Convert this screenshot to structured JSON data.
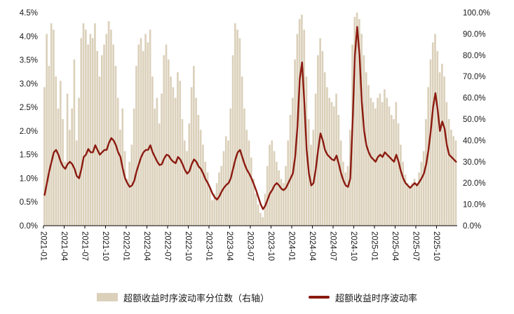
{
  "chart_data": {
    "type": "area+line",
    "title": "",
    "left_axis": {
      "min": 0,
      "max": 4.5,
      "ticks": [
        "4.5%",
        "4.0%",
        "3.5%",
        "3.0%",
        "2.5%",
        "2.0%",
        "1.5%",
        "1.0%",
        "0.5%",
        "0.0%"
      ]
    },
    "right_axis": {
      "min": 0,
      "max": 100,
      "ticks": [
        "100.0%",
        "90.0%",
        "80.0%",
        "70.0%",
        "60.0%",
        "50.0%",
        "40.0%",
        "30.0%",
        "20.0%",
        "10.0%",
        "0.0%"
      ]
    },
    "x_ticks": [
      "2021-01",
      "2021-04",
      "2021-07",
      "2021-10",
      "2022-01",
      "2022-04",
      "2022-07",
      "2022-10",
      "2023-01",
      "2023-04",
      "2023-07",
      "2023-10",
      "2024-01",
      "2024-04",
      "2024-07",
      "2024-10",
      "2025-01",
      "2025-04",
      "2025-07",
      "2025-10"
    ],
    "months_per_tick": 3,
    "months_span": 60,
    "grid": "off",
    "legend_position": "bottom",
    "series": [
      {
        "name": "超额收益时序波动率分位数（右轴）",
        "axis": "right",
        "type": "area",
        "color": "#DBD0BA",
        "values": [
          65,
          90,
          75,
          95,
          92,
          70,
          55,
          68,
          50,
          30,
          62,
          45,
          55,
          78,
          40,
          60,
          88,
          95,
          92,
          85,
          90,
          88,
          95,
          82,
          70,
          80,
          85,
          90,
          96,
          92,
          85,
          75,
          60,
          45,
          55,
          35,
          22,
          30,
          38,
          55,
          75,
          85,
          88,
          82,
          90,
          86,
          92,
          70,
          55,
          60,
          48,
          62,
          80,
          85,
          78,
          70,
          65,
          60,
          72,
          68,
          50,
          40,
          35,
          48,
          65,
          75,
          60,
          52,
          45,
          38,
          30,
          25,
          18,
          12,
          15,
          20,
          25,
          28,
          35,
          42,
          40,
          55,
          80,
          95,
          92,
          88,
          70,
          55,
          45,
          40,
          32,
          22,
          15,
          10,
          6,
          4,
          15,
          28,
          38,
          40,
          35,
          30,
          26,
          22,
          20,
          28,
          40,
          52,
          60,
          78,
          90,
          97,
          99,
          92,
          70,
          50,
          38,
          45,
          62,
          80,
          88,
          82,
          72,
          65,
          60,
          58,
          56,
          62,
          52,
          40,
          30,
          25,
          28,
          45,
          85,
          98,
          100,
          97,
          90,
          80,
          72,
          66,
          60,
          58,
          55,
          60,
          62,
          58,
          64,
          60,
          56,
          52,
          50,
          58,
          48,
          38,
          30,
          24,
          20,
          18,
          20,
          22,
          20,
          25,
          30,
          35,
          50,
          65,
          78,
          86,
          90,
          82,
          72,
          76,
          70,
          58,
          50,
          45,
          42,
          40
        ]
      },
      {
        "name": "超额收益时序波动率",
        "axis": "left",
        "type": "line",
        "color": "#8B1A10",
        "values": [
          0.65,
          0.9,
          1.15,
          1.35,
          1.55,
          1.6,
          1.5,
          1.35,
          1.25,
          1.2,
          1.3,
          1.35,
          1.3,
          1.2,
          1.05,
          1.0,
          1.2,
          1.45,
          1.5,
          1.62,
          1.55,
          1.55,
          1.7,
          1.6,
          1.5,
          1.55,
          1.6,
          1.6,
          1.75,
          1.85,
          1.8,
          1.7,
          1.55,
          1.45,
          1.2,
          1.0,
          0.9,
          0.82,
          0.85,
          0.95,
          1.15,
          1.3,
          1.45,
          1.55,
          1.6,
          1.6,
          1.7,
          1.55,
          1.45,
          1.35,
          1.28,
          1.3,
          1.42,
          1.5,
          1.48,
          1.4,
          1.35,
          1.32,
          1.45,
          1.4,
          1.3,
          1.18,
          1.1,
          1.15,
          1.3,
          1.4,
          1.35,
          1.25,
          1.2,
          1.1,
          0.98,
          0.9,
          0.8,
          0.68,
          0.6,
          0.55,
          0.62,
          0.72,
          0.8,
          0.86,
          0.9,
          1.0,
          1.2,
          1.4,
          1.55,
          1.6,
          1.45,
          1.3,
          1.18,
          1.1,
          1.0,
          0.88,
          0.75,
          0.6,
          0.45,
          0.35,
          0.42,
          0.55,
          0.68,
          0.75,
          0.85,
          0.9,
          0.85,
          0.78,
          0.75,
          0.8,
          0.9,
          1.0,
          1.1,
          1.45,
          2.1,
          3.1,
          3.45,
          2.6,
          1.6,
          1.1,
          0.85,
          0.9,
          1.2,
          1.6,
          1.95,
          1.8,
          1.6,
          1.5,
          1.45,
          1.4,
          1.38,
          1.48,
          1.3,
          1.1,
          0.95,
          0.85,
          0.82,
          1.0,
          2.2,
          3.6,
          4.2,
          3.6,
          2.6,
          2.0,
          1.7,
          1.55,
          1.45,
          1.4,
          1.35,
          1.45,
          1.5,
          1.45,
          1.55,
          1.5,
          1.45,
          1.4,
          1.35,
          1.5,
          1.35,
          1.15,
          1.0,
          0.9,
          0.85,
          0.8,
          0.85,
          0.9,
          0.85,
          0.92,
          1.0,
          1.1,
          1.3,
          1.6,
          2.0,
          2.5,
          2.8,
          2.45,
          2.0,
          2.2,
          2.05,
          1.7,
          1.5,
          1.45,
          1.4,
          1.35
        ]
      }
    ],
    "legend": [
      {
        "label": "超额收益时序波动率分位数（右轴）",
        "swatch": "area"
      },
      {
        "label": "超额收益时序波动率",
        "swatch": "line"
      }
    ]
  }
}
